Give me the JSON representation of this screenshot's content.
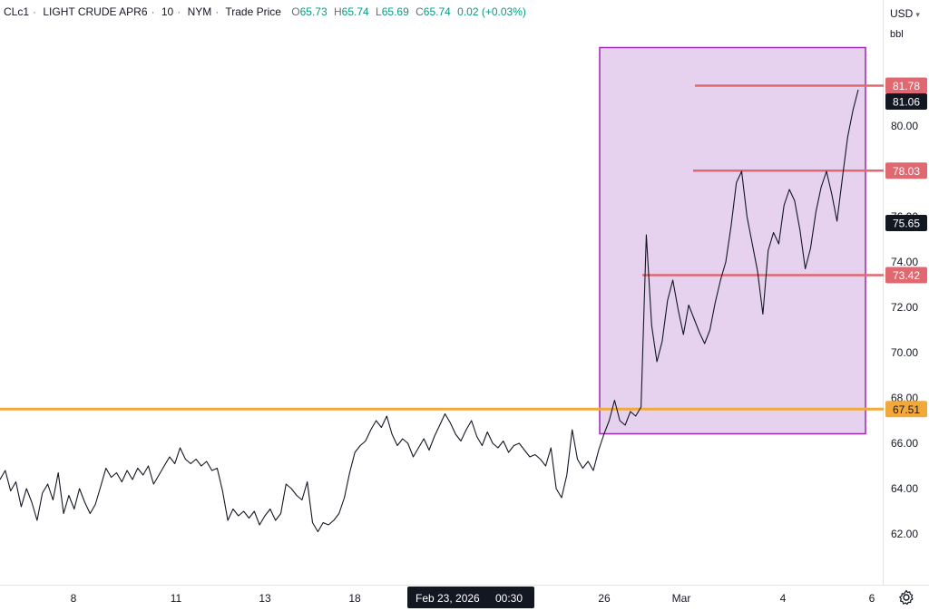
{
  "header": {
    "symbol": "CLc1",
    "name": "LIGHT CRUDE APR6",
    "interval": "10",
    "exchange": "NYM",
    "price_type": "Trade Price",
    "open_label": "O",
    "open": "65.73",
    "high_label": "H",
    "high": "65.74",
    "low_label": "L",
    "low": "65.69",
    "close_label": "C",
    "close": "65.74",
    "change": "0.02 (+0.03%)"
  },
  "currency": {
    "label": "USD"
  },
  "unit": {
    "label": "bbl"
  },
  "crosshair_label": {
    "date": "Feb 23, 2026",
    "time": "00:30"
  },
  "colors": {
    "candles": "#131722",
    "zone_fill": "#e6d2ee",
    "zone_border": "#9c27b0",
    "red_level": "#e06870",
    "orange_level": "#f2a93b",
    "axis_text": "#131722",
    "grid_border": "#e0e3eb"
  },
  "icons": {
    "settings": "gear-icon",
    "currency_dropdown": "chevron-down-icon"
  },
  "chart_data": {
    "type": "line",
    "title": "",
    "xlabel": "",
    "ylabel": "",
    "ylim": [
      60.5,
      83.5
    ],
    "y_ticks": [
      "62.00",
      "64.00",
      "66.00",
      "68.00",
      "70.00",
      "72.00",
      "74.00",
      "76.00",
      "78.00",
      "80.00"
    ],
    "x_ticks": [
      "8",
      "11",
      "13",
      "18",
      "26",
      "Mar",
      "4",
      "6"
    ],
    "grid": false,
    "price_badges": [
      {
        "name": "last-price",
        "text": "81.06",
        "style": "dark"
      },
      {
        "name": "level-75",
        "text": "75.65",
        "style": "dark"
      }
    ],
    "levels": [
      {
        "name": "level-81-78",
        "value": 81.78,
        "label": "81.78",
        "color": "#e06870"
      },
      {
        "name": "level-78-03",
        "value": 78.03,
        "label": "78.03",
        "color": "#e06870"
      },
      {
        "name": "level-73-42",
        "value": 73.42,
        "label": "73.42",
        "color": "#e06870"
      },
      {
        "name": "level-67-51",
        "value": 67.51,
        "label": "67.51",
        "color": "#f2a93b"
      }
    ],
    "zone": {
      "name": "breakout-zone",
      "y_top": 82.95,
      "y_bottom": 66.45,
      "from_x": "Feb 26",
      "to_x": "Mar 6"
    },
    "series": [
      {
        "values": [
          64.4,
          64.8,
          63.9,
          64.3,
          63.2,
          64.0,
          63.4,
          62.6,
          63.8,
          64.2,
          63.5,
          64.7,
          62.9,
          63.7,
          63.1,
          64.0,
          63.4,
          62.9,
          63.3,
          64.1,
          64.9,
          64.5,
          64.7,
          64.3,
          64.8,
          64.4,
          64.9,
          64.6,
          65.0,
          64.2,
          64.6,
          65.0,
          65.4,
          65.1,
          65.8,
          65.3,
          65.1,
          65.3,
          65.0,
          65.2,
          64.8,
          64.9,
          63.9,
          62.6,
          63.1,
          62.8,
          63.0,
          62.7,
          63.0,
          62.4,
          62.8,
          63.1,
          62.6,
          62.9,
          64.2,
          64.0,
          63.7,
          63.5,
          64.3,
          62.5,
          62.1,
          62.5,
          62.4,
          62.6,
          62.9,
          63.6,
          64.7,
          65.6,
          65.9,
          66.1,
          66.6,
          67.0,
          66.7,
          67.2,
          66.4,
          65.9,
          66.2,
          66.0,
          65.4,
          65.8,
          66.2,
          65.7,
          66.3,
          66.8,
          67.3,
          66.9,
          66.4,
          66.1,
          66.6,
          67.0,
          66.3,
          65.9,
          66.5,
          66.0,
          65.8,
          66.1,
          65.6,
          65.9,
          66.0,
          65.7,
          65.4,
          65.5,
          65.3,
          65.0,
          65.8,
          64.0,
          63.6,
          64.6,
          66.6,
          65.3,
          64.9,
          65.2,
          64.8,
          65.7,
          66.4,
          67.0,
          67.9,
          67.0,
          66.8,
          67.4,
          67.2,
          67.6,
          75.2,
          71.2,
          69.6,
          70.5,
          72.3,
          73.2,
          71.9,
          70.8,
          72.1,
          71.5,
          70.9,
          70.4,
          71.0,
          72.2,
          73.2,
          74.0,
          75.6,
          77.5,
          78.0,
          76.0,
          74.8,
          73.6,
          71.7,
          74.5,
          75.3,
          74.8,
          76.5,
          77.2,
          76.7,
          75.4,
          73.7,
          74.6,
          76.2,
          77.3,
          78.0,
          77.0,
          75.8,
          77.7,
          79.5,
          80.7,
          81.6
        ]
      }
    ]
  }
}
